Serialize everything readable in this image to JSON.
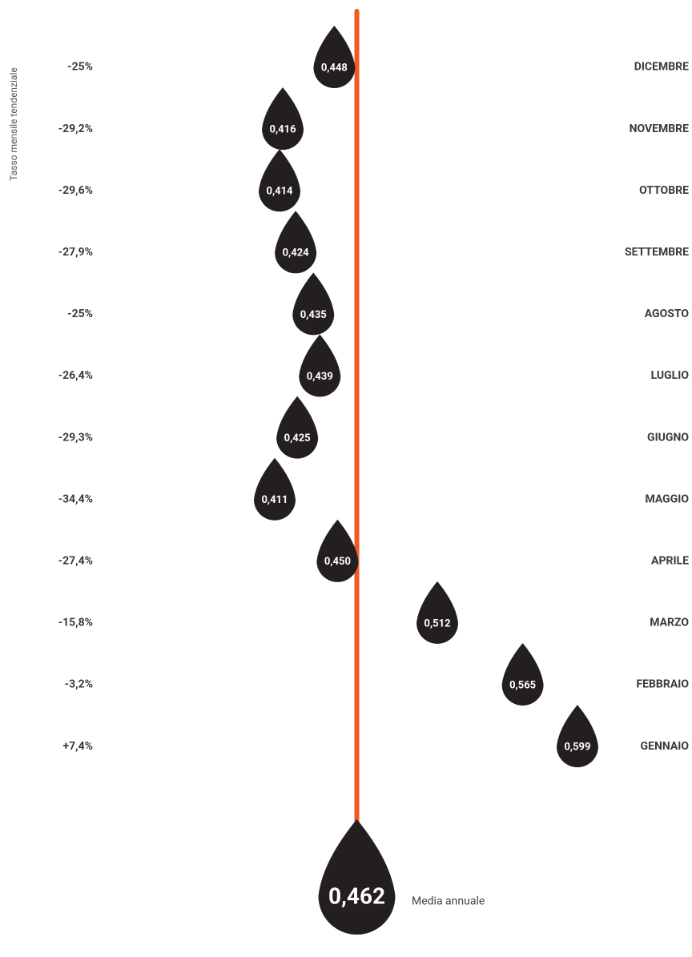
{
  "chart_data": {
    "type": "drop",
    "y_label": "Tasso mensile tendenziale",
    "categories": [
      "DICEMBRE",
      "NOVEMBRE",
      "OTTOBRE",
      "SETTEMBRE",
      "AGOSTO",
      "LUGLIO",
      "GIUGNO",
      "MAGGIO",
      "APRILE",
      "MARZO",
      "FEBBRAIO",
      "GENNAIO"
    ],
    "rates": [
      "-25%",
      "-29,2%",
      "-29,6%",
      "-27,9%",
      "-25%",
      "-26,4%",
      "-29,3%",
      "-34,4%",
      "-27,4%",
      "-15,8%",
      "-3,2%",
      "+7,4%"
    ],
    "values": [
      0.448,
      0.416,
      0.414,
      0.424,
      0.435,
      0.439,
      0.425,
      0.411,
      0.45,
      0.512,
      0.565,
      0.599
    ],
    "value_labels": [
      "0,448",
      "0,416",
      "0,414",
      "0,424",
      "0,435",
      "0,439",
      "0,425",
      "0,411",
      "0,450",
      "0,512",
      "0,565",
      "0,599"
    ],
    "color": "#231f20",
    "mean": {
      "value": 0.462,
      "label": "0,462",
      "name": "Media annuale",
      "color": "#f15a24"
    },
    "xlim": [
      0.25,
      0.65
    ]
  }
}
